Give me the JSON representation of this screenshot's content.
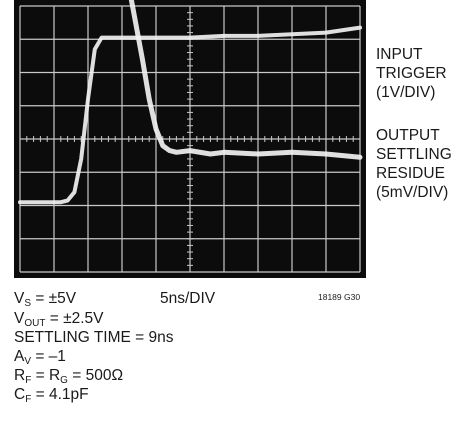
{
  "chart_data": {
    "type": "line",
    "series": [
      {
        "name": "INPUT TRIGGER (1V/DIV)",
        "x": [
          0,
          6,
          7,
          8,
          9,
          10,
          11,
          12,
          13,
          14,
          16,
          20,
          25,
          30,
          35,
          40,
          45,
          50
        ],
        "y": [
          -1.9,
          -1.9,
          -1.85,
          -1.6,
          -0.6,
          1.2,
          2.7,
          3.05,
          3.05,
          3.05,
          3.05,
          3.05,
          3.05,
          3.1,
          3.1,
          3.15,
          3.2,
          3.35
        ]
      },
      {
        "name": "OUTPUT SETTLING RESIDUE (5mV/DIV)",
        "x": [
          16,
          17,
          18,
          19,
          20,
          21,
          22,
          23,
          25,
          28,
          30,
          35,
          40,
          45,
          50
        ],
        "y": [
          4.6,
          3.5,
          2.4,
          1.2,
          0.3,
          -0.2,
          -0.35,
          -0.4,
          -0.35,
          -0.45,
          -0.4,
          -0.45,
          -0.4,
          -0.45,
          -0.55
        ]
      }
    ],
    "xlim": [
      0,
      50
    ],
    "ylim": [
      -4,
      4
    ],
    "grid": true,
    "divisions": {
      "x": 10,
      "y": 8
    },
    "trace_labels": [
      [
        "INPUT",
        "TRIGGER",
        "(1V/DIV)"
      ],
      [
        "OUTPUT",
        "SETTLING",
        "RESIDUE",
        "(5mV/DIV)"
      ]
    ],
    "colors": {
      "screen": "#0c0c0c",
      "grid": "#c9c9c9",
      "trace": "#f2f2f2"
    }
  },
  "conditions": {
    "vs_main": "V",
    "vs_sub": "S",
    "vs_rest": " = ±5V",
    "vout_main": "V",
    "vout_sub": "OUT",
    "vout_rest": " = ±2.5V",
    "settling": "SETTLING TIME = 9ns",
    "av_main": "A",
    "av_sub": "V",
    "av_rest": " = –1",
    "rf_main": "R",
    "rf_sub": "F",
    "rf_mid": " = R",
    "rg_sub": "G",
    "rg_rest": " = 500Ω",
    "cf_main": "C",
    "cf_sub": "F",
    "cf_rest": " = 4.1pF"
  },
  "timebase": "5ns/DIV",
  "figure_id": "18189 G30"
}
